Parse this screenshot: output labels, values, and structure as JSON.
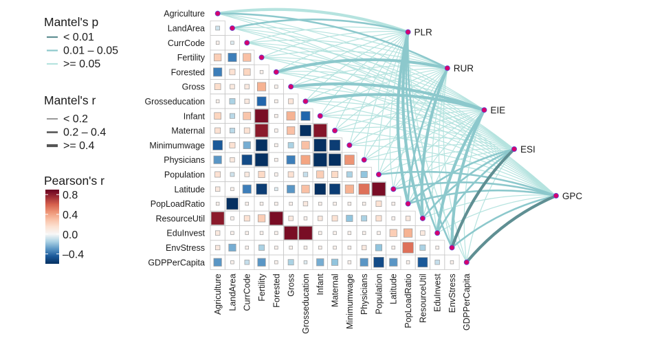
{
  "chart_data": {
    "type": "heatmap",
    "variables": [
      "Agriculture",
      "LandArea",
      "CurrCode",
      "Fertility",
      "Forested",
      "Gross",
      "Grosseducation",
      "Infant",
      "Maternal",
      "Minimumwage",
      "Physicians",
      "Population",
      "Latitude",
      "PopLoadRatio",
      "ResourceUtil",
      "EduInvest",
      "EnvStress",
      "GDPPerCapita"
    ],
    "correlation_lower": [
      [],
      [
        -0.08
      ],
      [
        0.05,
        -0.05
      ],
      [
        0.25,
        -0.35,
        0.3
      ],
      [
        -0.35,
        0.15,
        0.22,
        0.05
      ],
      [
        0.18,
        0.1,
        0.1,
        0.35,
        0.05
      ],
      [
        0.05,
        -0.15,
        0.1,
        -0.4,
        0.05,
        0.12
      ],
      [
        0.22,
        -0.12,
        0.28,
        0.85,
        0.05,
        0.35,
        -0.4
      ],
      [
        0.15,
        -0.12,
        0.15,
        0.8,
        0.05,
        0.3,
        -0.6,
        0.82
      ],
      [
        -0.45,
        0.15,
        -0.25,
        -0.65,
        0.05,
        -0.15,
        0.3,
        -0.75,
        -0.55
      ],
      [
        -0.3,
        0.1,
        -0.5,
        -0.8,
        0.05,
        -0.35,
        0.4,
        -0.85,
        -0.7,
        0.45
      ],
      [
        0.15,
        -0.08,
        0.1,
        0.2,
        0.05,
        0.15,
        -0.1,
        0.25,
        0.2,
        -0.15,
        -0.2
      ],
      [
        0.1,
        0.05,
        -0.35,
        -0.55,
        -0.05,
        -0.3,
        0.3,
        -0.6,
        -0.55,
        0.35,
        0.55,
        0.85
      ],
      [
        0.05,
        -0.65,
        0.05,
        0.05,
        0.05,
        0.05,
        0.1,
        0.05,
        0.05,
        0.05,
        0.05,
        0.15,
        0.05
      ],
      [
        0.8,
        0.05,
        0.15,
        0.25,
        0.85,
        0.1,
        0.05,
        0.1,
        0.15,
        -0.2,
        -0.15,
        0.15,
        0.05,
        0.1
      ],
      [
        0.1,
        0.05,
        0.05,
        0.05,
        0.05,
        0.85,
        0.85,
        0.05,
        0.05,
        0.05,
        0.05,
        0.05,
        0.25,
        0.35,
        0.1
      ],
      [
        0.1,
        -0.25,
        0.05,
        -0.15,
        0.05,
        0.05,
        0.05,
        0.05,
        0.05,
        0.05,
        0.1,
        -0.2,
        0.05,
        0.55,
        -0.15,
        0.05
      ],
      [
        -0.3,
        0.05,
        -0.1,
        -0.3,
        0.05,
        -0.15,
        -0.05,
        -0.25,
        -0.2,
        0.05,
        -0.3,
        -0.5,
        -0.3,
        0.05,
        -0.45,
        -0.1,
        0.05
      ]
    ],
    "targets": [
      "PLR",
      "RUR",
      "EIE",
      "ESI",
      "GPC"
    ],
    "mantel_links": [
      {
        "to": "PLR",
        "from": [
          "Agriculture",
          "LandArea",
          "CurrCode",
          "Fertility",
          "Forested",
          "Gross",
          "Grosseducation",
          "Infant",
          "Maternal",
          "Minimumwage",
          "Physicians",
          "Population",
          "Latitude",
          "PopLoadRatio",
          "ResourceUtil",
          "EduInvest",
          "EnvStress",
          "GDPPerCapita"
        ],
        "r_class": [
          2,
          1,
          0,
          0,
          0,
          0,
          0,
          0,
          0,
          0,
          0,
          0,
          0,
          2,
          2,
          1,
          1,
          0
        ],
        "p_class": [
          2,
          1,
          2,
          2,
          2,
          2,
          2,
          2,
          2,
          2,
          2,
          2,
          2,
          1,
          1,
          1,
          1,
          2
        ]
      },
      {
        "to": "RUR",
        "from": [
          "Agriculture",
          "LandArea",
          "CurrCode",
          "Fertility",
          "Forested",
          "Gross",
          "Grosseducation",
          "Infant",
          "Maternal",
          "Minimumwage",
          "Physicians",
          "Population",
          "Latitude",
          "PopLoadRatio",
          "ResourceUtil",
          "EduInvest",
          "EnvStress",
          "GDPPerCapita"
        ],
        "r_class": [
          1,
          0,
          0,
          0,
          2,
          0,
          0,
          0,
          0,
          0,
          0,
          0,
          0,
          1,
          2,
          0,
          0,
          0
        ],
        "p_class": [
          1,
          2,
          2,
          2,
          1,
          2,
          2,
          2,
          2,
          2,
          2,
          2,
          2,
          1,
          1,
          2,
          2,
          2
        ]
      },
      {
        "to": "EIE",
        "from": [
          "Agriculture",
          "LandArea",
          "CurrCode",
          "Fertility",
          "Forested",
          "Gross",
          "Grosseducation",
          "Infant",
          "Maternal",
          "Minimumwage",
          "Physicians",
          "Population",
          "Latitude",
          "PopLoadRatio",
          "ResourceUtil",
          "EduInvest",
          "EnvStress",
          "GDPPerCapita"
        ],
        "r_class": [
          0,
          0,
          0,
          0,
          0,
          2,
          2,
          0,
          0,
          0,
          0,
          0,
          0,
          0,
          0,
          2,
          2,
          0
        ],
        "p_class": [
          2,
          2,
          2,
          2,
          2,
          1,
          1,
          2,
          2,
          2,
          2,
          2,
          2,
          2,
          2,
          1,
          1,
          2
        ]
      },
      {
        "to": "ESI",
        "from": [
          "Agriculture",
          "LandArea",
          "CurrCode",
          "Fertility",
          "Forested",
          "Gross",
          "Grosseducation",
          "Infant",
          "Maternal",
          "Minimumwage",
          "Physicians",
          "Population",
          "Latitude",
          "PopLoadRatio",
          "ResourceUtil",
          "EduInvest",
          "EnvStress",
          "GDPPerCapita"
        ],
        "r_class": [
          0,
          0,
          0,
          0,
          0,
          0,
          0,
          0,
          0,
          0,
          0,
          0,
          0,
          1,
          1,
          1,
          2,
          0
        ],
        "p_class": [
          2,
          2,
          2,
          2,
          2,
          2,
          2,
          2,
          2,
          2,
          2,
          2,
          2,
          1,
          1,
          1,
          0,
          2
        ]
      },
      {
        "to": "GPC",
        "from": [
          "Agriculture",
          "LandArea",
          "CurrCode",
          "Fertility",
          "Forested",
          "Gross",
          "Grosseducation",
          "Infant",
          "Maternal",
          "Minimumwage",
          "Physicians",
          "Population",
          "Latitude",
          "PopLoadRatio",
          "ResourceUtil",
          "EduInvest",
          "EnvStress",
          "GDPPerCapita"
        ],
        "r_class": [
          0,
          0,
          0,
          0,
          0,
          0,
          0,
          0,
          0,
          0,
          0,
          1,
          1,
          1,
          0,
          0,
          1,
          2
        ],
        "p_class": [
          2,
          2,
          2,
          2,
          2,
          2,
          2,
          2,
          2,
          2,
          2,
          1,
          1,
          1,
          2,
          2,
          1,
          0
        ]
      }
    ],
    "legend": {
      "p_title": "Mantel's p",
      "p_labels": [
        "< 0.01",
        "0.01 – 0.05",
        ">= 0.05"
      ],
      "r_title": "Mantel's r",
      "r_labels": [
        "< 0.2",
        "0.2 – 0.4",
        ">= 0.4"
      ],
      "color_title": "Pearson's r",
      "color_ticks": [
        "0.8",
        "0.4",
        "0.0",
        "–0.4"
      ],
      "color_tick_values": [
        0.8,
        0.4,
        0.0,
        -0.4
      ],
      "color_range": [
        -0.6,
        0.9
      ]
    },
    "colors": {
      "p_colors": [
        "#5f8f93",
        "#8cc8cc",
        "#b5e3df"
      ],
      "node_fill": "#d6006d",
      "node_stroke": "#5a4fd6",
      "cell_border": "#9a9a9a",
      "grid_line": "#c8c8c8",
      "positive": "#67001f",
      "neutral": "#f7f7f7",
      "negative": "#053061"
    }
  }
}
